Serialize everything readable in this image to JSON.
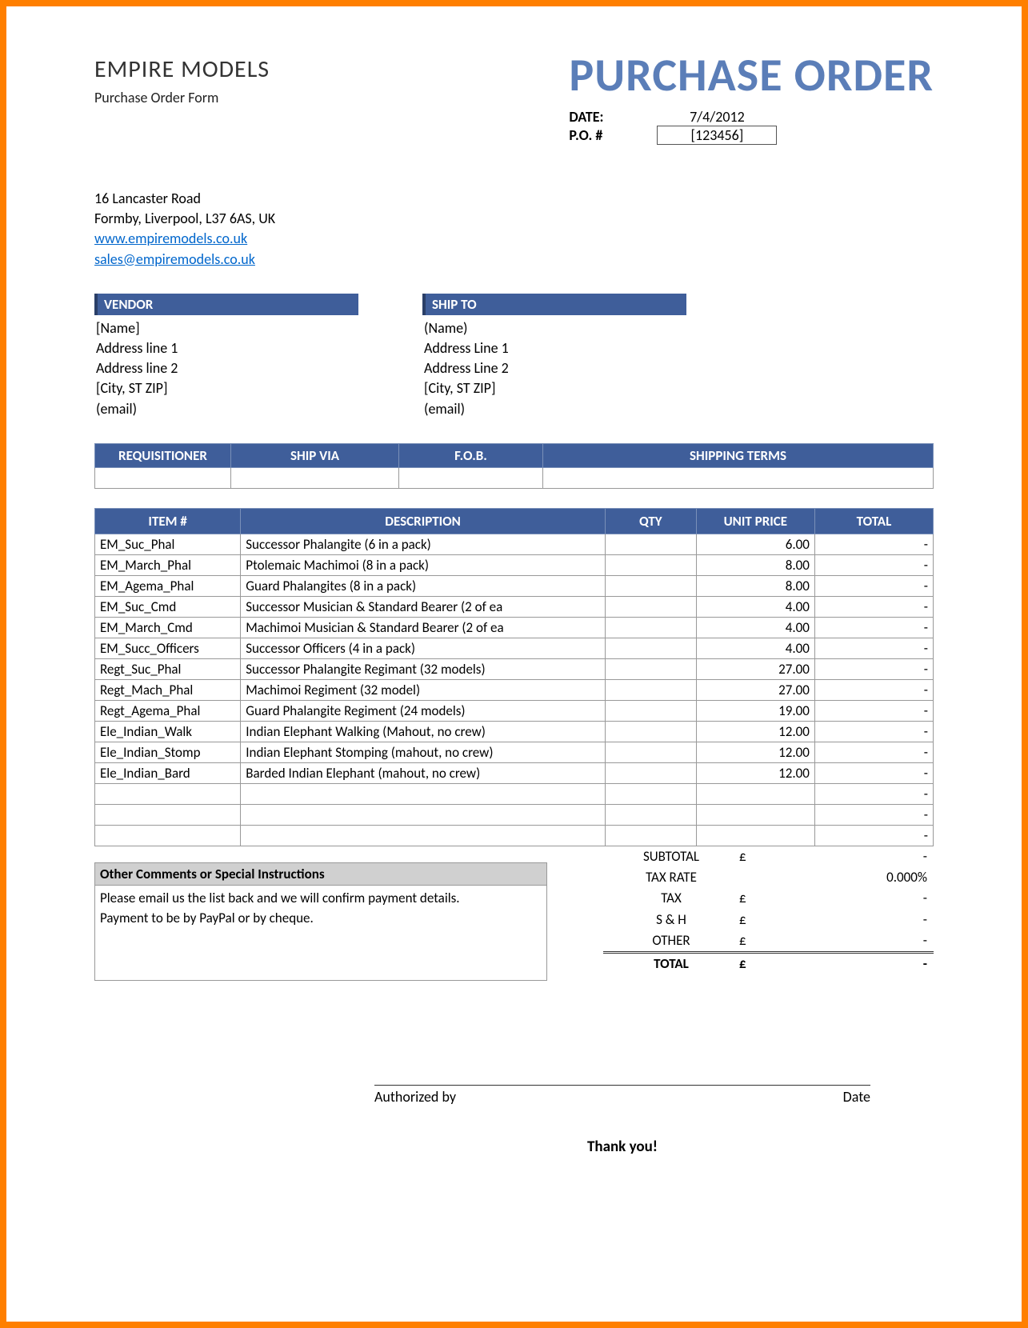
{
  "header": {
    "company_name": "EMPIRE MODELS",
    "subtitle": "Purchase Order Form",
    "title": "PURCHASE ORDER",
    "date_label": "DATE:",
    "date_value": "7/4/2012",
    "po_label": "P.O. #",
    "po_value": "[123456]"
  },
  "address": {
    "line1": "16 Lancaster Road",
    "line2": "Formby, Liverpool, L37 6AS, UK",
    "website": "www.empiremodels.co.uk",
    "email": "sales@empiremodels.co.uk"
  },
  "vendor": {
    "header": "VENDOR",
    "name": "[Name]",
    "addr1": "Address line 1",
    "addr2": "Address line 2",
    "city": "[City, ST  ZIP]",
    "email": "(email)"
  },
  "shipto": {
    "header": "SHIP TO",
    "name": "(Name)",
    "addr1": "Address Line 1",
    "addr2": "Address Line 2",
    "city": "[City, ST  ZIP]",
    "email": "(email)"
  },
  "shipinfo": {
    "headers": [
      "REQUISITIONER",
      "SHIP VIA",
      "F.O.B.",
      "SHIPPING TERMS"
    ],
    "col_widths": [
      "170px",
      "210px",
      "180px",
      "auto"
    ]
  },
  "items": {
    "headers": [
      "ITEM #",
      "DESCRIPTION",
      "QTY",
      "UNIT PRICE",
      "TOTAL"
    ],
    "rows": [
      {
        "item": "EM_Suc_Phal",
        "desc": "Successor Phalangite (6 in a pack)",
        "qty": "",
        "price": "6.00",
        "total": "-"
      },
      {
        "item": "EM_March_Phal",
        "desc": "Ptolemaic Machimoi (8 in a pack)",
        "qty": "",
        "price": "8.00",
        "total": "-"
      },
      {
        "item": "EM_Agema_Phal",
        "desc": "Guard Phalangites (8 in a pack)",
        "qty": "",
        "price": "8.00",
        "total": "-"
      },
      {
        "item": "EM_Suc_Cmd",
        "desc": "Successor Musician & Standard Bearer (2 of ea",
        "qty": "",
        "price": "4.00",
        "total": "-"
      },
      {
        "item": "EM_March_Cmd",
        "desc": "Machimoi Musician & Standard Bearer (2 of ea",
        "qty": "",
        "price": "4.00",
        "total": "-"
      },
      {
        "item": "EM_Succ_Officers",
        "desc": "Successor Officers (4 in a pack)",
        "qty": "",
        "price": "4.00",
        "total": "-"
      },
      {
        "item": "Regt_Suc_Phal",
        "desc": "Successor Phalangite Regimant (32 models)",
        "qty": "",
        "price": "27.00",
        "total": "-"
      },
      {
        "item": "Regt_Mach_Phal",
        "desc": "Machimoi Regiment (32 model)",
        "qty": "",
        "price": "27.00",
        "total": "-"
      },
      {
        "item": "Regt_Agema_Phal",
        "desc": "Guard Phalangite Regiment (24 models)",
        "qty": "",
        "price": "19.00",
        "total": "-"
      },
      {
        "item": "Ele_Indian_Walk",
        "desc": "Indian Elephant Walking (Mahout, no crew)",
        "qty": "",
        "price": "12.00",
        "total": "-"
      },
      {
        "item": "Ele_Indian_Stomp",
        "desc": "Indian Elephant Stomping (mahout, no crew)",
        "qty": "",
        "price": "12.00",
        "total": "-"
      },
      {
        "item": "Ele_Indian_Bard",
        "desc": "Barded Indian Elephant (mahout, no crew)",
        "qty": "",
        "price": "12.00",
        "total": "-"
      },
      {
        "item": "",
        "desc": "",
        "qty": "",
        "price": "",
        "total": "-"
      },
      {
        "item": "",
        "desc": "",
        "qty": "",
        "price": "",
        "total": "-"
      },
      {
        "item": "",
        "desc": "",
        "qty": "",
        "price": "",
        "total": "-"
      }
    ]
  },
  "comments": {
    "header": "Other Comments or Special Instructions",
    "line1": "Please email us the list back and we will confirm payment details.",
    "line2": "Payment to be by PayPal or by cheque."
  },
  "totals": {
    "subtotal_label": "SUBTOTAL",
    "subtotal_cur": "£",
    "subtotal_val": "-",
    "taxrate_label": "TAX RATE",
    "taxrate_val": "0.000%",
    "tax_label": "TAX",
    "tax_cur": "£",
    "tax_val": "-",
    "sh_label": "S & H",
    "sh_cur": "£",
    "sh_val": "-",
    "other_label": "OTHER",
    "other_cur": "£",
    "other_val": "-",
    "total_label": "TOTAL",
    "total_cur": "£",
    "total_val": "-"
  },
  "signature": {
    "auth_label": "Authorized by",
    "date_label": "Date"
  },
  "footer": {
    "thanks": "Thank you!"
  },
  "colors": {
    "accent": "#3f5e9a",
    "title": "#5b7eb8",
    "border": "#ff7f00",
    "link": "#0066cc"
  }
}
